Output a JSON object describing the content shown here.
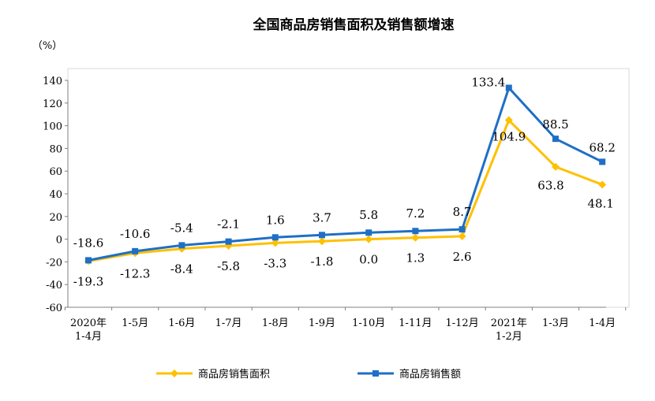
{
  "chart_data": {
    "type": "line",
    "title": "全国商品房销售面积及销售额增速",
    "unit": "（%）",
    "categories": [
      [
        "2020年",
        "1-4月"
      ],
      [
        "1-5月"
      ],
      [
        "1-6月"
      ],
      [
        "1-7月"
      ],
      [
        "1-8月"
      ],
      [
        "1-9月"
      ],
      [
        "1-10月"
      ],
      [
        "1-11月"
      ],
      [
        "1-12月"
      ],
      [
        "2021年",
        "1-2月"
      ],
      [
        "1-3月"
      ],
      [
        "1-4月"
      ]
    ],
    "ylim": [
      -60,
      140
    ],
    "yticks": [
      -60,
      -40,
      -20,
      0,
      20,
      40,
      60,
      80,
      100,
      120,
      140
    ],
    "grid": false,
    "legend_position": "bottom",
    "series": [
      {
        "name": "商品房销售面积",
        "color": "#FFC000",
        "marker": "diamond",
        "label_position": "below",
        "values": [
          -19.3,
          -12.3,
          -8.4,
          -5.8,
          -3.3,
          -1.8,
          0.0,
          1.3,
          2.6,
          104.9,
          63.8,
          48.1
        ],
        "labels": [
          "-19.3",
          "-12.3",
          "-8.4",
          "-5.8",
          "-3.3",
          "-1.8",
          "0.0",
          "1.3",
          "2.6",
          "104.9",
          "63.8",
          "48.1"
        ]
      },
      {
        "name": "商品房销售额",
        "color": "#1F6FC5",
        "marker": "square",
        "label_position": "above",
        "values": [
          -18.6,
          -10.6,
          -5.4,
          -2.1,
          1.6,
          3.7,
          5.8,
          7.2,
          8.7,
          133.4,
          88.5,
          68.2
        ],
        "labels": [
          "-18.6",
          "-10.6",
          "-5.4",
          "-2.1",
          "1.6",
          "3.7",
          "5.8",
          "7.2",
          "8.7",
          "133.4",
          "88.5",
          "68.2"
        ]
      }
    ]
  }
}
